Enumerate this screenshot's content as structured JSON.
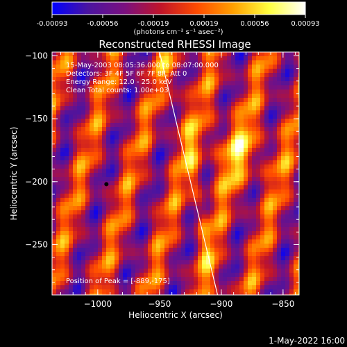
{
  "colorbar": {
    "ticks": [
      "-0.00093",
      "-0.00056",
      "-0.00019",
      "0.00019",
      "0.00056",
      "0.00093"
    ],
    "units_label": "(photons cm⁻² s⁻¹ asec⁻²)",
    "colors": [
      "#0000ff",
      "#4b14a0",
      "#7a1080",
      "#c0142a",
      "#ff4b00",
      "#ffa000",
      "#ffff40",
      "#ffffff"
    ]
  },
  "chart_data": {
    "type": "heatmap",
    "title": "Reconstructed RHESSI Image",
    "xlabel": "Heliocentric X (arcsec)",
    "ylabel": "Heliocentric Y (arcsec)",
    "xlim": [
      -1037,
      -837
    ],
    "ylim": [
      -290,
      -97
    ],
    "x_ticks": [
      {
        "value": -1000,
        "label": "−1000"
      },
      {
        "value": -950,
        "label": "−950"
      },
      {
        "value": -900,
        "label": "−900"
      },
      {
        "value": -850,
        "label": "−850"
      }
    ],
    "y_ticks": [
      {
        "value": -100,
        "label": "−100"
      },
      {
        "value": -150,
        "label": "−150"
      },
      {
        "value": -200,
        "label": "−200"
      },
      {
        "value": -250,
        "label": "−250"
      }
    ],
    "annotations": [
      "15-May-2003 08:05:36.000 to 08:07:00.000",
      "Detectors: 3F 4F 5F 6F 7F 8F, Att 0",
      "Energy Range: 12.0 - 25.0 keV",
      "Clean     Total counts: 1.00e+03"
    ],
    "peak_label": "Position of Peak = [-889,-175]",
    "peak": [
      -889,
      -175
    ],
    "limb_line": [
      [
        -950,
        -97
      ],
      [
        -903,
        -290
      ]
    ]
  },
  "footer_timestamp": "1-May-2022 16:00"
}
